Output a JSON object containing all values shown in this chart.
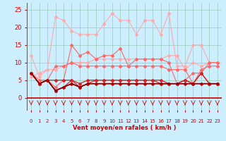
{
  "x": [
    0,
    1,
    2,
    3,
    4,
    5,
    6,
    7,
    8,
    9,
    10,
    11,
    12,
    13,
    14,
    15,
    16,
    17,
    18,
    19,
    20,
    21,
    22,
    23
  ],
  "series": [
    {
      "name": "rafales_top",
      "color": "#ffaaaa",
      "marker": "D",
      "markersize": 2,
      "linewidth": 0.8,
      "values": [
        12,
        6,
        8,
        23,
        22,
        19,
        18,
        18,
        18,
        21,
        24,
        22,
        22,
        18,
        22,
        22,
        18,
        24,
        9,
        9,
        15,
        15,
        10,
        10
      ]
    },
    {
      "name": "moyen_grad",
      "color": "#ffaaaa",
      "marker": "D",
      "markersize": 2,
      "linewidth": 0.8,
      "values": [
        6,
        7,
        8,
        8,
        9,
        10,
        10,
        10,
        11,
        11,
        11,
        11,
        11,
        11,
        11,
        11,
        11,
        12,
        12,
        8,
        10,
        9,
        10,
        10
      ]
    },
    {
      "name": "series_med1",
      "color": "#ff6666",
      "marker": "D",
      "markersize": 2,
      "linewidth": 0.8,
      "values": [
        7,
        4,
        5,
        3,
        5,
        15,
        12,
        13,
        11,
        12,
        12,
        14,
        9,
        11,
        11,
        11,
        11,
        10,
        4,
        5,
        7,
        7,
        10,
        10
      ]
    },
    {
      "name": "series_med2",
      "color": "#ff6666",
      "marker": "D",
      "markersize": 2,
      "linewidth": 0.8,
      "values": [
        7,
        5,
        5,
        9,
        9,
        10,
        9,
        9,
        9,
        9,
        9,
        9,
        9,
        9,
        9,
        9,
        9,
        8,
        8,
        8,
        4,
        8,
        9,
        9
      ]
    },
    {
      "name": "series_dark1",
      "color": "#dd2222",
      "marker": "D",
      "markersize": 2,
      "linewidth": 0.9,
      "values": [
        7,
        4,
        5,
        5,
        5,
        5,
        4,
        5,
        5,
        5,
        5,
        5,
        5,
        5,
        5,
        5,
        5,
        4,
        4,
        5,
        4,
        7,
        4,
        4
      ]
    },
    {
      "name": "series_dark2",
      "color": "#dd2222",
      "marker": "D",
      "markersize": 2,
      "linewidth": 0.9,
      "values": [
        7,
        4,
        5,
        2,
        3,
        5,
        3,
        4,
        5,
        5,
        5,
        5,
        5,
        5,
        5,
        5,
        4,
        4,
        4,
        5,
        4,
        7,
        4,
        4
      ]
    },
    {
      "name": "series_dark3",
      "color": "#cc0000",
      "marker": "D",
      "markersize": 2,
      "linewidth": 0.9,
      "values": [
        7,
        4,
        5,
        2,
        3,
        4,
        3,
        4,
        4,
        4,
        4,
        4,
        4,
        4,
        4,
        4,
        4,
        4,
        4,
        4,
        4,
        4,
        4,
        4
      ]
    },
    {
      "name": "series_vdark1",
      "color": "#880000",
      "marker": null,
      "markersize": 0,
      "linewidth": 1.0,
      "values": [
        7,
        4,
        5,
        2,
        3,
        4,
        3,
        4,
        4,
        4,
        4,
        4,
        4,
        4,
        4,
        4,
        4,
        4,
        4,
        4,
        4,
        4,
        4,
        4
      ]
    },
    {
      "name": "series_vdark2",
      "color": "#880000",
      "marker": null,
      "markersize": 0,
      "linewidth": 1.0,
      "values": [
        7,
        4,
        5,
        2,
        3,
        4,
        3,
        4,
        4,
        4,
        4,
        4,
        4,
        4,
        4,
        4,
        4,
        4,
        4,
        4,
        4,
        4,
        4,
        4
      ]
    }
  ],
  "xlabel": "Vent moyen/en rafales ( km/h )",
  "ylim": [
    -3.5,
    27
  ],
  "yticks": [
    0,
    5,
    10,
    15,
    20,
    25
  ],
  "xlim": [
    -0.5,
    23.5
  ],
  "xticks": [
    0,
    1,
    2,
    3,
    4,
    5,
    6,
    7,
    8,
    9,
    10,
    11,
    12,
    13,
    14,
    15,
    16,
    17,
    18,
    19,
    20,
    21,
    22,
    23
  ],
  "bg_color": "#cceeff",
  "grid_color": "#99ccbb",
  "xlabel_color": "#cc0000",
  "tick_color": "#cc0000",
  "arrow_color": "#cc0000",
  "hline_color": "#cc0000"
}
